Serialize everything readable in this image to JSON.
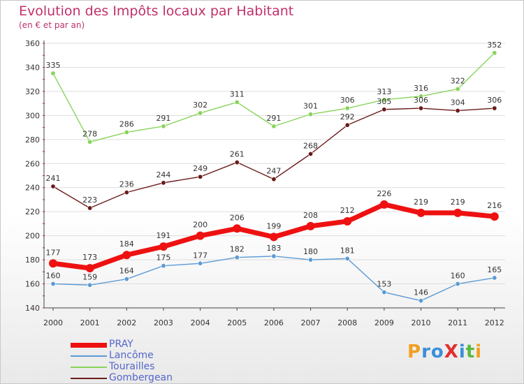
{
  "title": "Evolution des Impôts locaux par Habitant",
  "subtitle": "(en € et par an)",
  "logo": {
    "letters": [
      {
        "ch": "P",
        "color": "#f0a020"
      },
      {
        "ch": "r",
        "color": "#3a8fd8"
      },
      {
        "ch": "o",
        "color": "#3a8fd8"
      },
      {
        "ch": "X",
        "color": "#e03030"
      },
      {
        "ch": "i",
        "color": "#3a8fd8"
      },
      {
        "ch": "t",
        "color": "#5ab840"
      },
      {
        "ch": "i",
        "color": "#f0a020"
      }
    ]
  },
  "chart_data": {
    "type": "line",
    "categories": [
      "2000",
      "2001",
      "2002",
      "2003",
      "2004",
      "2005",
      "2006",
      "2007",
      "2008",
      "2009",
      "2010",
      "2011",
      "2012"
    ],
    "ylim": [
      140,
      360
    ],
    "yticks": [
      140,
      160,
      180,
      200,
      220,
      240,
      260,
      280,
      300,
      320,
      340,
      360
    ],
    "grid": "horizontal",
    "legend_position": "bottom-left",
    "series": [
      {
        "name": "PRAY",
        "color": "#ee1111",
        "values": [
          177,
          173,
          184,
          191,
          200,
          206,
          199,
          208,
          212,
          226,
          219,
          219,
          216
        ]
      },
      {
        "name": "Lancôme",
        "color": "#5b9bd5",
        "values": [
          160,
          159,
          164,
          175,
          177,
          182,
          183,
          180,
          181,
          153,
          146,
          160,
          165
        ]
      },
      {
        "name": "Tourailles",
        "color": "#88d45a",
        "values": [
          335,
          278,
          286,
          291,
          302,
          311,
          291,
          301,
          306,
          313,
          316,
          322,
          352
        ]
      },
      {
        "name": "Gombergean",
        "color": "#6b1a1a",
        "values": [
          241,
          223,
          236,
          244,
          249,
          261,
          247,
          268,
          292,
          305,
          306,
          304,
          306
        ]
      }
    ]
  }
}
